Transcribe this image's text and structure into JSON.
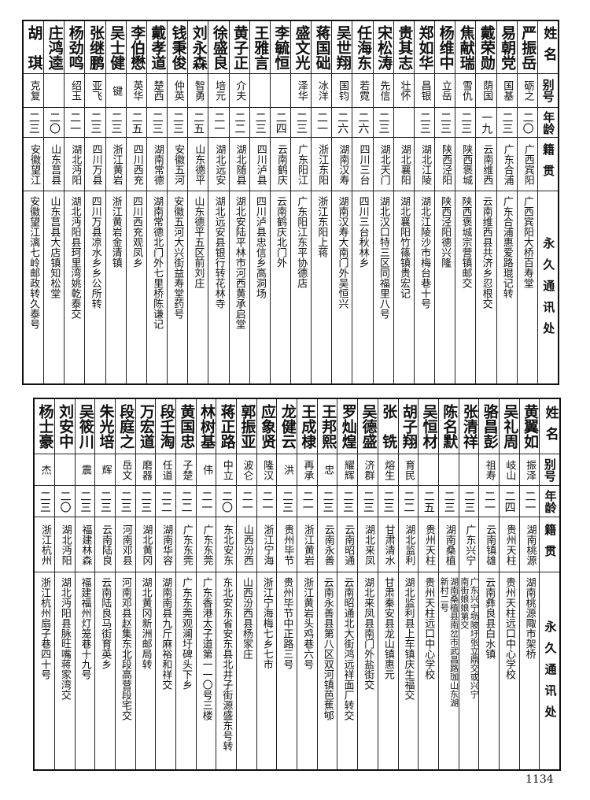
{
  "headers": {
    "name": "姓名",
    "alias": "别号",
    "age": "年龄",
    "hometown": "籍贯",
    "address": "永久通讯处"
  },
  "top_table": [
    {
      "name": "严振岳",
      "alias": "砺之",
      "age": "二〇",
      "hometown": "广西宾阳",
      "address": "广西宾阳大桥百寿堂"
    },
    {
      "name": "易朝党",
      "alias": "国基",
      "age": "二三",
      "hometown": "广东合浦",
      "address": "广东合浦惠爱路琨记转"
    },
    {
      "name": "戴荣勋",
      "alias": "荫国",
      "age": "一九",
      "hometown": "云南维西",
      "address": "云南维西县共济乡忍根交"
    },
    {
      "name": "焦献瑞",
      "alias": "雪仇",
      "age": "二三",
      "hometown": "陕西褒城",
      "address": "陕西褒城宗营镇邮交"
    },
    {
      "name": "杨维中",
      "alias": "立岳",
      "age": "二三",
      "hometown": "陕西泾阳",
      "address": "陕西泾阳德兴隆"
    },
    {
      "name": "郑如华",
      "alias": "昌银",
      "age": "二三",
      "hometown": "湖北江陵",
      "address": "湖北江陵沙市梅台巷十号"
    },
    {
      "name": "贵其志",
      "alias": "壮怀",
      "age": "",
      "hometown": "湖北襄阳",
      "address": "湖北襄阳竹篠镇贵宏记"
    },
    {
      "name": "宋松涛",
      "alias": "先信",
      "age": "二三",
      "hometown": "湖北天门",
      "address": "湖北汉口特三区同福里八号"
    },
    {
      "name": "任海东",
      "alias": "若霓",
      "age": "二六",
      "hometown": "四川三台",
      "address": "四川三台秋林乡"
    },
    {
      "name": "吴世翔",
      "alias": "国钧",
      "age": "二六",
      "hometown": "湖南汉寿",
      "address": "湖南汉寿大南门外吴恒兴"
    },
    {
      "name": "蒋国础",
      "alias": "冰洋",
      "age": "二一",
      "hometown": "浙江东阳",
      "address": "浙江东阳上蒋"
    },
    {
      "name": "盛文光",
      "alias": "泽华",
      "age": "二三",
      "hometown": "广东阳江",
      "address": "广东阳江东平协德店"
    },
    {
      "name": "李毓恒",
      "alias": "",
      "age": "二四",
      "hometown": "云南鹤庆",
      "address": "云南鹤庆北门外"
    },
    {
      "name": "王雅言",
      "alias": "",
      "age": "二三",
      "hometown": "四川泸县",
      "address": "四川泸县忠信乡高洞场"
    },
    {
      "name": "黄子正",
      "alias": "介夫",
      "age": "二二",
      "hometown": "湖北随县",
      "address": "湖北安陆平林市河西黄承启堂"
    },
    {
      "name": "徐盛良",
      "alias": "培元",
      "age": "二一",
      "hometown": "湖北远安",
      "address": "湖北远安县银行转花林寺"
    },
    {
      "name": "刘永森",
      "alias": "智勇",
      "age": "二五",
      "hometown": "山东德平",
      "address": "山东德平五区前刘庄"
    },
    {
      "name": "钱秉俊",
      "alias": "仲英",
      "age": "二三",
      "hometown": "安徽五河",
      "address": "安徽五河大兴街益寿堂药号"
    },
    {
      "name": "戴孝道",
      "alias": "楚西",
      "age": "二三",
      "hometown": "湖南常德",
      "address": "湖南常德北门外七里桥陈谦记"
    },
    {
      "name": "李伯懋",
      "alias": "英华",
      "age": "二五",
      "hometown": "四川西充",
      "address": "四川西充观凤乡"
    },
    {
      "name": "吴士健",
      "alias": "键",
      "age": "二三",
      "hometown": "浙江黄岩",
      "address": "浙江黄岩金清镇"
    },
    {
      "name": "张继鹏",
      "alias": "亚飞",
      "age": "二三",
      "hometown": "四川万县",
      "address": "四川万县凉水乡乡公所转"
    },
    {
      "name": "杨劲鸣",
      "alias": "绍玉",
      "age": "二一",
      "hometown": "湖北沔阳",
      "address": "湖北沔阳县珂里湾姚乾泰交"
    },
    {
      "name": "庄鸿逵",
      "alias": "",
      "age": "二〇",
      "hometown": "山东莒县",
      "address": "山东莒县大店镇知松堂"
    },
    {
      "name": "胡　琪",
      "alias": "克复",
      "age": "二三",
      "hometown": "安徽望江",
      "address": "安徽望江漓七岭邮政转久泰号"
    }
  ],
  "bottom_table": [
    {
      "name": "黄翼如",
      "alias": "振泽",
      "age": "二一",
      "hometown": "湖南桃源",
      "address": "湖南桃源陬市架桥"
    },
    {
      "name": "吴礼周",
      "alias": "岐山",
      "age": "二四",
      "hometown": "贵州天柱",
      "address": "贵州天柱远口中心学校"
    },
    {
      "name": "骆昌彭",
      "alias": "祖寿",
      "age": "二一",
      "hometown": "云南镇雄",
      "address": "云南彝良县白水镇"
    },
    {
      "name": "张清祥",
      "alias": "",
      "age": "二三",
      "hometown": "广东兴宁",
      "address": "广东兴宁坜陂圩张立鼎交或兴宁\n南街娘娘第交"
    },
    {
      "name": "陈名默",
      "alias": "",
      "age": "二三",
      "hometown": "湖南桑植",
      "address": "湖南桑植县南岔市武昌路珈山东湖\n新村二号"
    },
    {
      "name": "吴恒材",
      "alias": "",
      "age": "二五",
      "hometown": "贵州天柱",
      "address": "贵州天柱远口中心学校"
    },
    {
      "name": "胡子翔",
      "alias": "育民",
      "age": "二二",
      "hometown": "湖北监利",
      "address": "湖北监利县上车镇庆生福交"
    },
    {
      "name": "张　铣",
      "alias": "熔生",
      "age": "二三",
      "hometown": "甘肃清水",
      "address": "甘肃秦安县龙山镇惠元"
    },
    {
      "name": "吴德盛",
      "alias": "济群",
      "age": "二三",
      "hometown": "湖北来凤",
      "address": "湖北来凤县南门外盐街交"
    },
    {
      "name": "罗灿煌",
      "alias": "耀辉",
      "age": "二三",
      "hometown": "云南昭通",
      "address": "云南昭通北大街鸿远祥面厂转交"
    },
    {
      "name": "王邦熙",
      "alias": "忠",
      "age": "二三",
      "hometown": "云南永善",
      "address": "云南永善县第八区双河镇芭蕉郇"
    },
    {
      "name": "王成棣",
      "alias": "再承",
      "age": "二一",
      "hometown": "浙江黄岩",
      "address": "浙江黄岩头鸡巷六号"
    },
    {
      "name": "龙健云",
      "alias": "洪",
      "age": "二三",
      "hometown": "贵州毕节",
      "address": "贵州毕节中正路三号"
    },
    {
      "name": "应象贤",
      "alias": "隆汉",
      "age": "二一",
      "hometown": "浙江宁海",
      "address": "浙江宁海梅七乡七市"
    },
    {
      "name": "郭振亚",
      "alias": "波仑",
      "age": "二一",
      "hometown": "山西汾西",
      "address": "山西汾西县杨家庄"
    },
    {
      "name": "蒋正路",
      "alias": "中立",
      "age": "二〇",
      "hometown": "东北安东",
      "address": "东北安东省安东县北井子街源盛东号转"
    },
    {
      "name": "林树基",
      "alias": "伟",
      "age": "二一",
      "hometown": "广东东莞",
      "address": "广东香港太子道第一一〇号三楼"
    },
    {
      "name": "黄国忠",
      "alias": "子楚",
      "age": "二二",
      "hometown": "广东东莞",
      "address": "广东东莞观澜圩碑头下乡"
    },
    {
      "name": "段壬淘",
      "alias": "任道",
      "age": "二二",
      "hometown": "湖南华容",
      "address": "湖南南县九斤麻裕和祥交"
    },
    {
      "name": "万宏道",
      "alias": "磨器",
      "age": "二三",
      "hometown": "湖北黄冈",
      "address": "湖北黄冈新洲邮局转"
    },
    {
      "name": "段庭之",
      "alias": "岳文",
      "age": "二三",
      "hometown": "河南邓县",
      "address": "河南邓县赵集东北段高营段宅交"
    },
    {
      "name": "朱光培",
      "alias": "辉",
      "age": "二三",
      "hometown": "云南陆良",
      "address": "云南陆良马街育英乡"
    },
    {
      "name": "吴筱川",
      "alias": "震",
      "age": "二三",
      "hometown": "福建林森",
      "address": "福建福州灯笼巷十九号"
    },
    {
      "name": "刘安中",
      "alias": "",
      "age": "二〇",
      "hometown": "湖北沔阳",
      "address": "湖北沔阳县脉旺嘴蒋家湾交"
    },
    {
      "name": "杨士豪",
      "alias": "杰",
      "age": "二三",
      "hometown": "浙江杭州",
      "address": "浙江杭州扇子巷四十号"
    }
  ],
  "page_number": "1134"
}
